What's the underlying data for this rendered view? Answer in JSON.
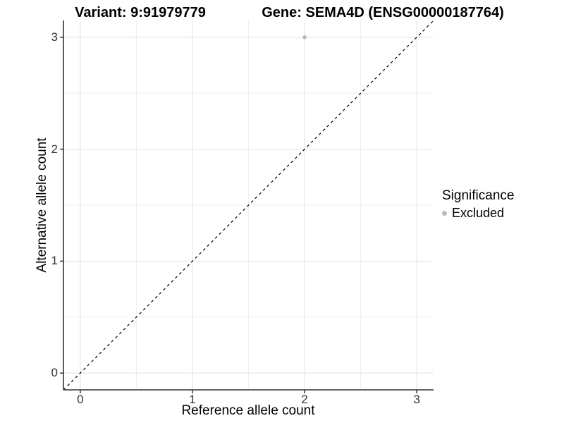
{
  "chart_data": {
    "type": "scatter",
    "title_left": "Variant: 9:91979779",
    "title_right": "Gene: SEMA4D (ENSG00000187764)",
    "xlabel": "Reference allele count",
    "ylabel": "Alternative allele count",
    "x_ticks": [
      0,
      1,
      2,
      3
    ],
    "y_ticks": [
      0,
      1,
      2,
      3
    ],
    "x_tick_labels": [
      "0",
      "1",
      "2",
      "3"
    ],
    "y_tick_labels": [
      "0",
      "1",
      "2",
      "3"
    ],
    "xlim": [
      -0.15,
      3.15
    ],
    "ylim": [
      -0.15,
      3.15
    ],
    "grid": {
      "show": true,
      "major_color": "#e3e3e3",
      "minor_color": "#efefef"
    },
    "series": [
      {
        "name": "Excluded",
        "color": "#b8b8b8",
        "point_radius": 2.8,
        "points": [
          {
            "x": 2,
            "y": 3
          }
        ]
      }
    ],
    "reference_line": {
      "type": "identity",
      "equation": "y = x",
      "style": "dashed",
      "color": "#000000"
    },
    "legend": {
      "title": "Significance",
      "position": "right",
      "entries": [
        {
          "label": "Excluded",
          "color": "#b8b8b8",
          "marker": "circle"
        }
      ]
    },
    "colors": {
      "axis": "#333333",
      "tick_text": "#333333",
      "background": "#ffffff"
    }
  }
}
